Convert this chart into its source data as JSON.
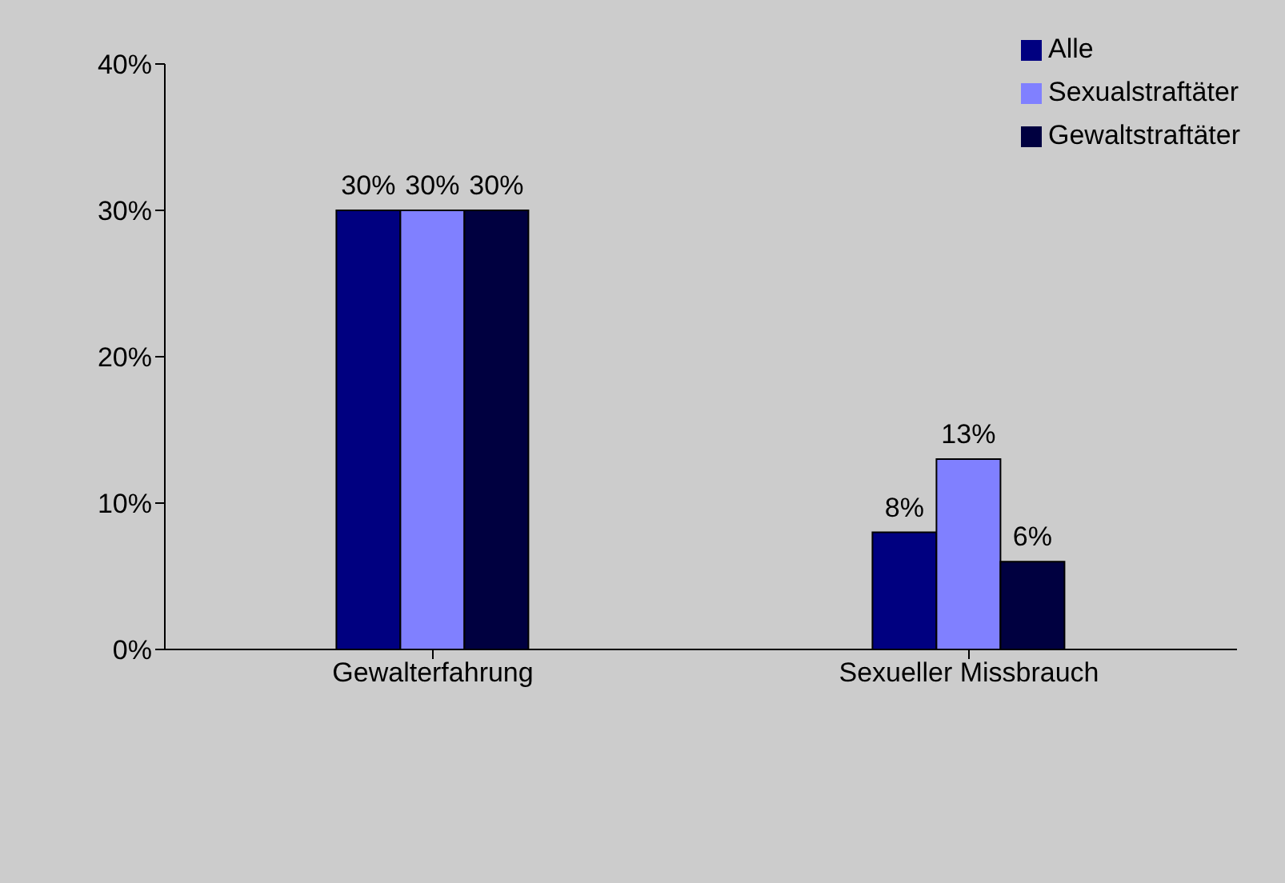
{
  "chart_data": {
    "type": "bar",
    "categories": [
      "Gewalterfahrung",
      "Sexueller Missbrauch"
    ],
    "series": [
      {
        "name": "Alle",
        "color": "#000080",
        "values": [
          30,
          8
        ],
        "value_labels": [
          "30%",
          "8%"
        ]
      },
      {
        "name": "Sexualstraftäter",
        "color": "#8080ff",
        "values": [
          30,
          13
        ],
        "value_labels": [
          "30%",
          "13%"
        ]
      },
      {
        "name": "Gewaltstraftäter",
        "color": "#000040",
        "values": [
          30,
          6
        ],
        "value_labels": [
          "30%",
          "6%"
        ]
      }
    ],
    "ylim": [
      0,
      40
    ],
    "yticks": [
      {
        "value": 0,
        "label": "0%"
      },
      {
        "value": 10,
        "label": "10%"
      },
      {
        "value": 20,
        "label": "20%"
      },
      {
        "value": 30,
        "label": "30%"
      },
      {
        "value": 40,
        "label": "40%"
      }
    ],
    "grid": false,
    "legend": "top right"
  }
}
